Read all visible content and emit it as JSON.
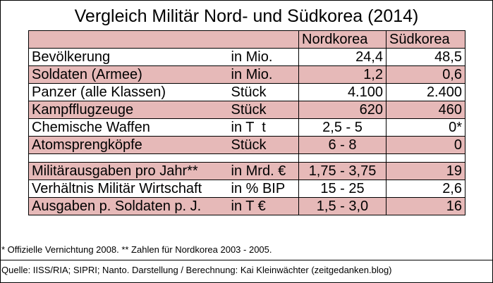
{
  "title": "Vergleich Militär Nord- und Südkorea (2014)",
  "chart_data": {
    "type": "table",
    "columns": [
      "",
      "",
      "Nordkorea",
      "Südkorea"
    ],
    "rows": [
      {
        "label": "Bevölkerung",
        "unit": "in Mio.",
        "nord": "24,4",
        "sued": "48,5"
      },
      {
        "label": "Soldaten (Armee)",
        "unit": "in Mio.",
        "nord": "1,2",
        "sued": "0,6"
      },
      {
        "label": "Panzer (alle Klassen)",
        "unit": "Stück",
        "nord": "4.100",
        "sued": "2.400"
      },
      {
        "label": "Kampfflugzeuge",
        "unit": "Stück",
        "nord": "620",
        "sued": "460"
      },
      {
        "label": "Chemische Waffen",
        "unit": "in T  t",
        "nord": "2,5 - 5",
        "sued": "0*"
      },
      {
        "label": "Atomsprengköpfe",
        "unit": "Stück",
        "nord": "6 - 8",
        "sued": "0"
      },
      {
        "label": "Militärausgaben pro Jahr**",
        "unit": "in Mrd. €",
        "nord": "1,75 - 3,75",
        "sued": "19"
      },
      {
        "label": "Verhältnis Militär Wirtschaft",
        "unit": "in % BIP",
        "nord": "15 - 25",
        "sued": "2,6"
      },
      {
        "label": "Ausgaben p. Soldaten p. J.",
        "unit": "in T €",
        "nord": "1,5 - 3,0",
        "sued": "16"
      }
    ]
  },
  "footnote": "* Offizielle Vernichtung 2008. ** Zahlen für Nordkorea 2003 - 2005.",
  "source": "Quelle: IISS/RIA; SIPRI; Nanto. Darstellung / Berechnung: Kai Kleinwächter (zeitgedanken.blog)",
  "colors": {
    "row_pink": "#e6b9b8",
    "row_white": "#ffffff",
    "border": "#000000"
  }
}
